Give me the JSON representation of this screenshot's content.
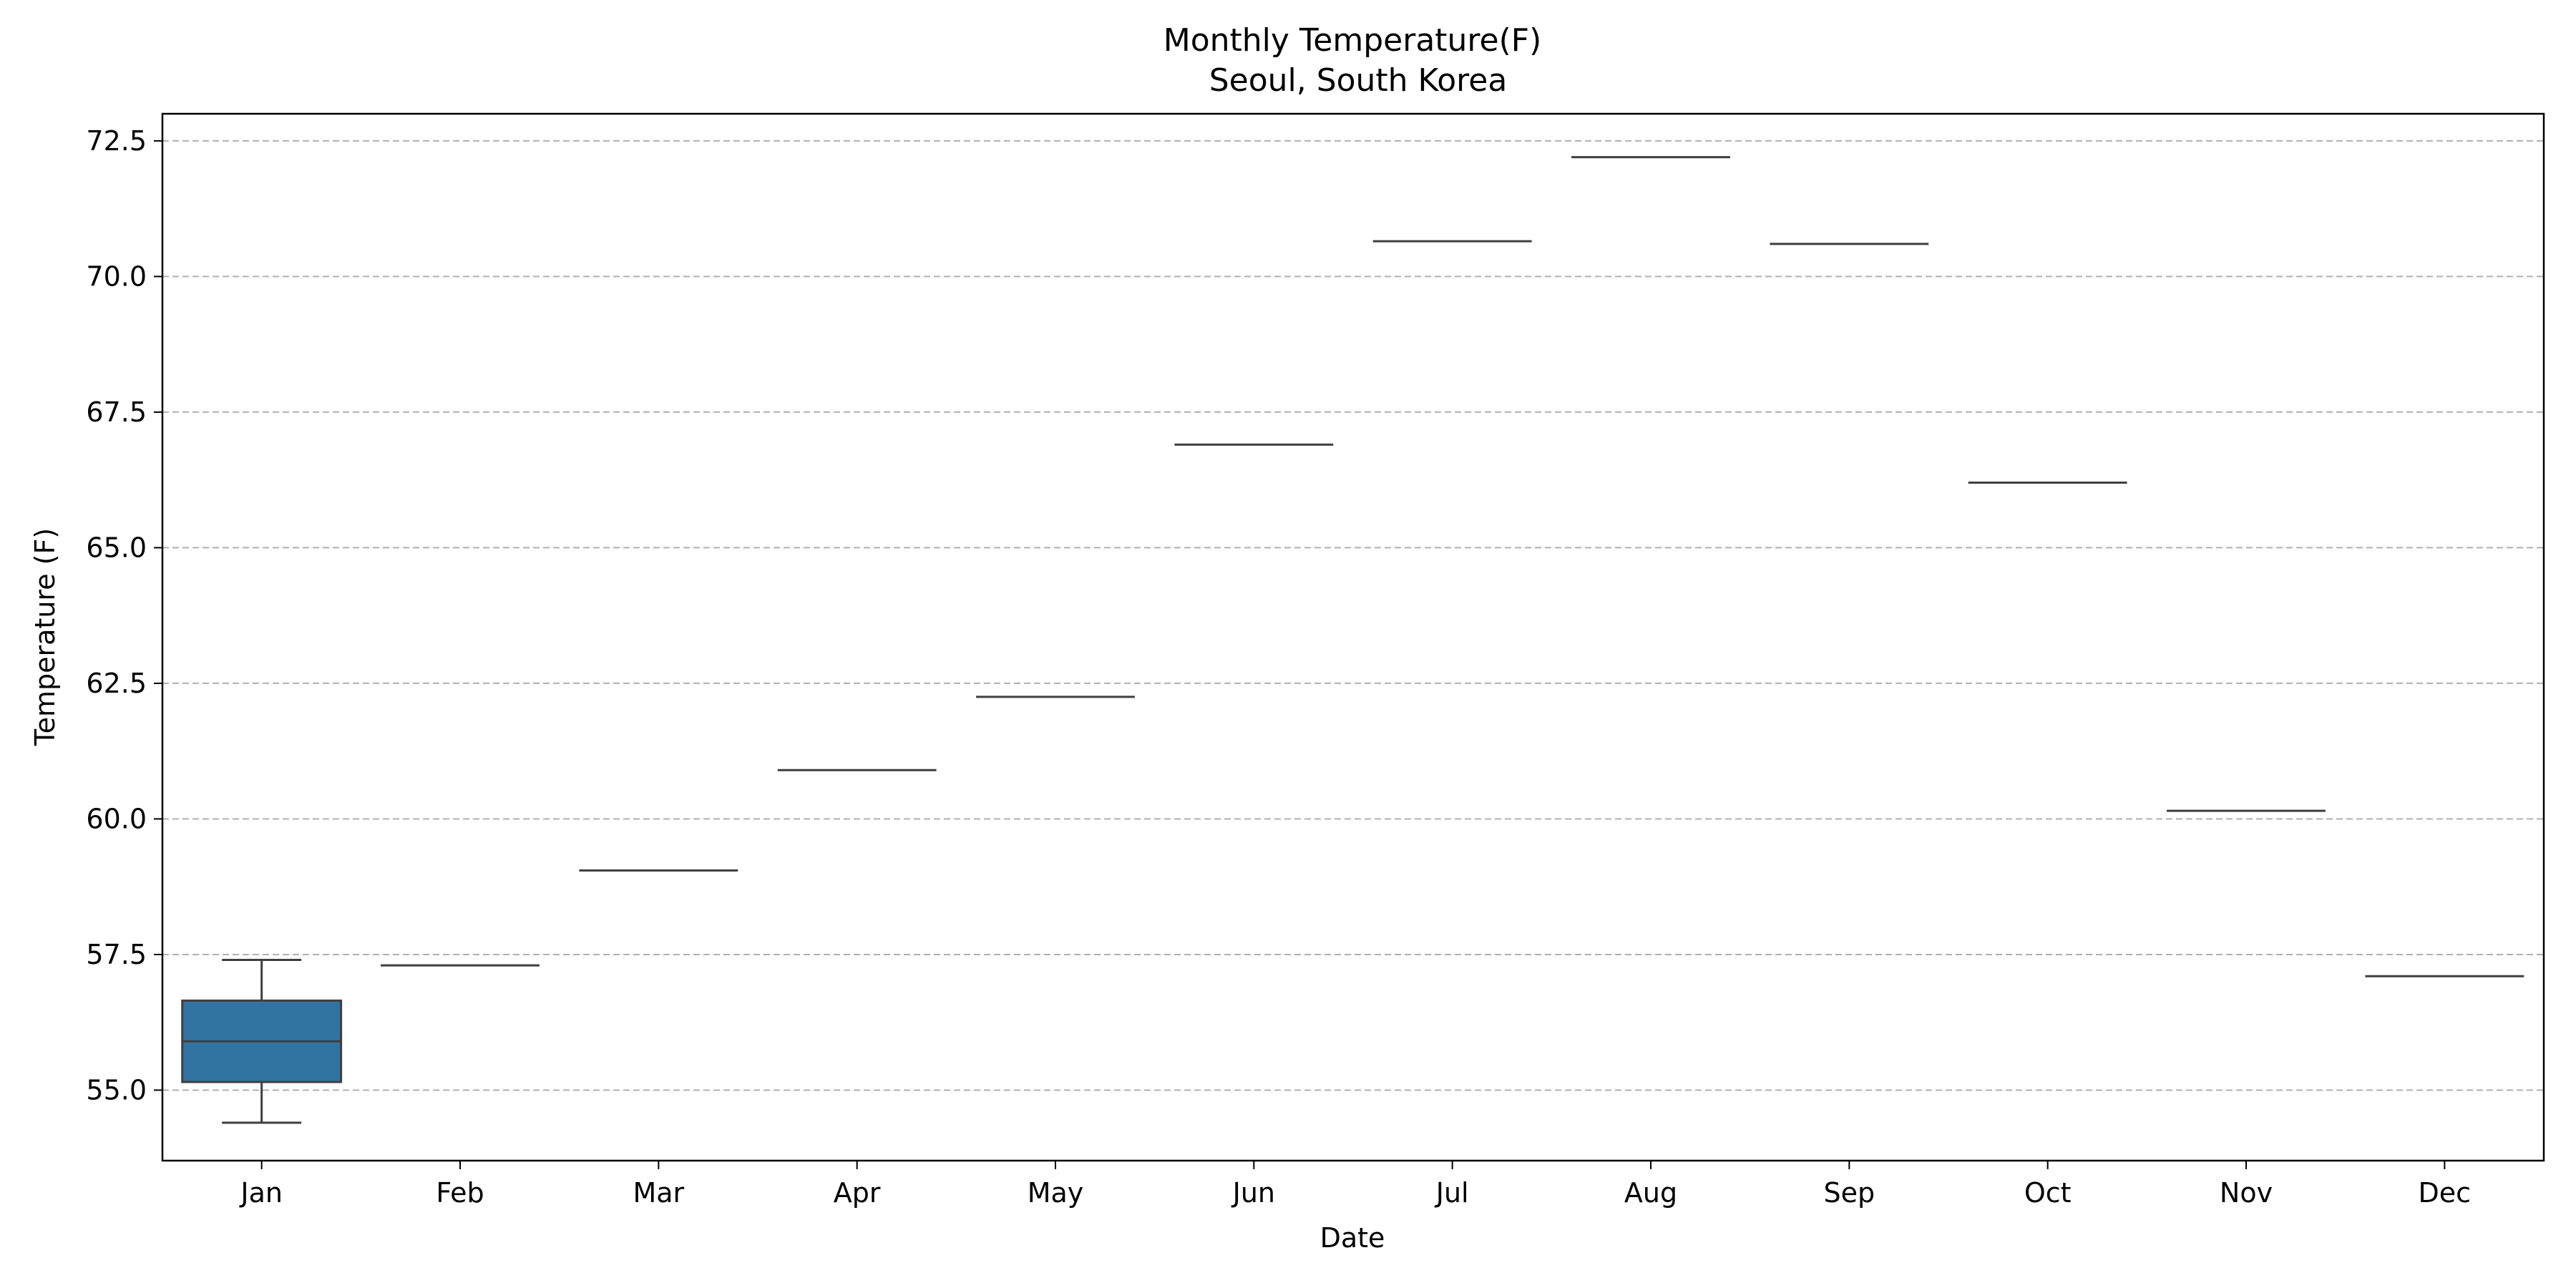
{
  "chart_data": {
    "type": "box",
    "title_line1": "Monthly Temperature(F)",
    "title_line2": "Seoul, South Korea",
    "xlabel": "Date",
    "ylabel": "Temperature (F)",
    "ylim": [
      53.7,
      73.0
    ],
    "yticks": [
      "55.0",
      "57.5",
      "60.0",
      "62.5",
      "65.0",
      "67.5",
      "70.0",
      "72.5"
    ],
    "grid": "y-dashed",
    "categories": [
      "Jan",
      "Feb",
      "Mar",
      "Apr",
      "May",
      "Jun",
      "Jul",
      "Aug",
      "Sep",
      "Oct",
      "Nov",
      "Dec"
    ],
    "boxes": [
      {
        "month": "Jan",
        "whisker_low": 54.4,
        "q1": 55.15,
        "median": 55.9,
        "q3": 56.65,
        "whisker_high": 57.4
      },
      {
        "month": "Feb",
        "value": 57.3
      },
      {
        "month": "Mar",
        "value": 59.05
      },
      {
        "month": "Apr",
        "value": 60.9
      },
      {
        "month": "May",
        "value": 62.25
      },
      {
        "month": "Jun",
        "value": 66.9
      },
      {
        "month": "Jul",
        "value": 70.65
      },
      {
        "month": "Aug",
        "value": 72.2
      },
      {
        "month": "Sep",
        "value": 70.6
      },
      {
        "month": "Oct",
        "value": 66.2
      },
      {
        "month": "Nov",
        "value": 60.15
      },
      {
        "month": "Dec",
        "value": 57.1
      }
    ],
    "box_color": "#3274a1",
    "line_color": "#3f3f3f"
  }
}
